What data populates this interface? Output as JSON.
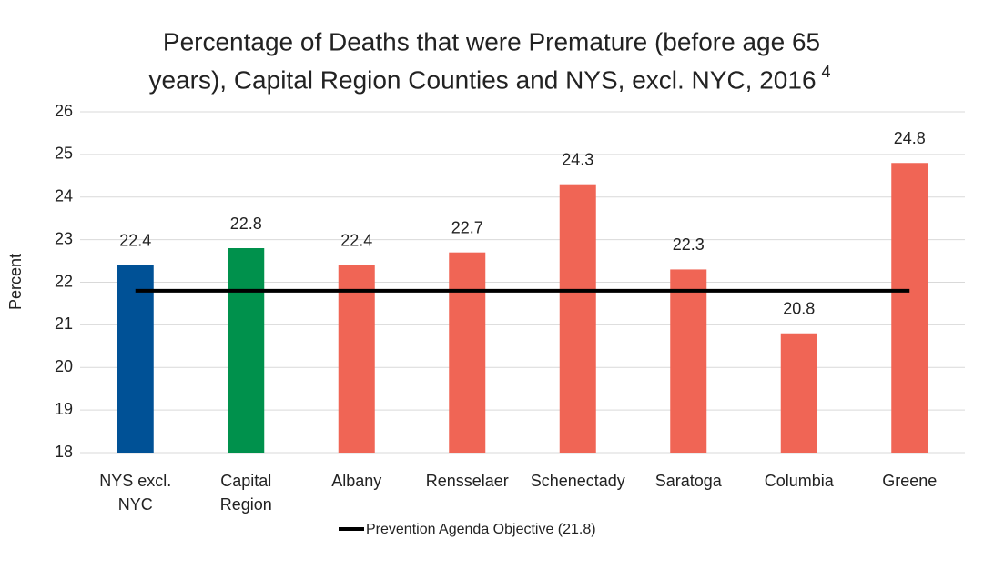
{
  "chart_data": {
    "type": "bar",
    "title": [
      "Percentage of Deaths that were Premature (before age 65",
      "years), Capital Region Counties and NYS, excl. NYC, 2016"
    ],
    "title_note": "4",
    "y_label": "Percent",
    "categories": [
      [
        "NYS excl.",
        "NYC"
      ],
      [
        "Capital",
        "Region"
      ],
      [
        "Albany"
      ],
      [
        "Rensselaer"
      ],
      [
        "Schenectady"
      ],
      [
        "Saratoga"
      ],
      [
        "Columbia"
      ],
      [
        "Greene"
      ]
    ],
    "series": [
      {
        "type": "bar",
        "values": [
          22.4,
          22.8,
          22.4,
          22.7,
          24.3,
          22.3,
          20.8,
          24.8
        ],
        "colors": [
          "#005196",
          "#00914c",
          "#f06555",
          "#f06555",
          "#f06555",
          "#f06555",
          "#f06555",
          "#f06555"
        ]
      },
      {
        "type": "line",
        "name": "Prevention Agenda Objective (21.8)",
        "color": "#000000",
        "values": [
          21.8,
          21.8,
          21.8,
          21.8,
          21.8,
          21.8,
          21.8,
          21.8
        ]
      }
    ],
    "ylim": [
      18,
      26
    ],
    "yticks": [
      18,
      19,
      20,
      21,
      22,
      23,
      24,
      25,
      26
    ],
    "grid": true,
    "legend": "bottom"
  }
}
